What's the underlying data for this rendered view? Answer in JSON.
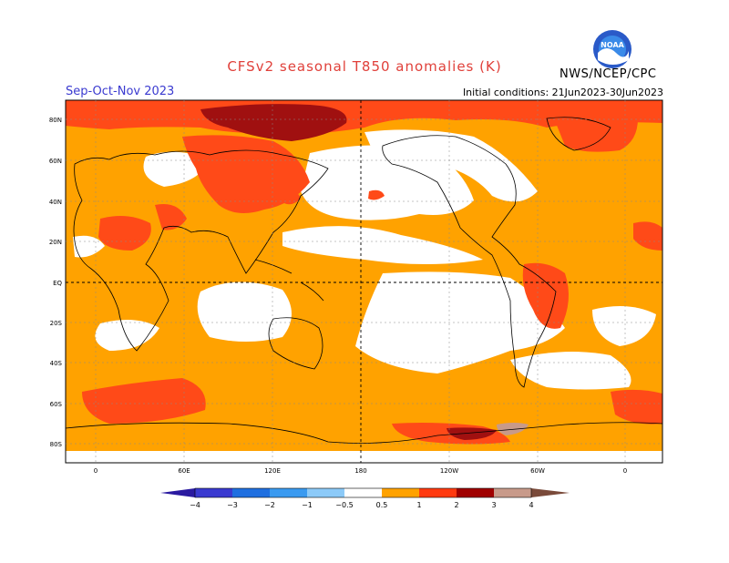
{
  "header": {
    "title": "CFSv2 seasonal T850 anomalies (K)",
    "season": "Sep-Oct-Nov 2023",
    "initial_conditions": "Initial conditions: 21Jun2023-30Jun2023",
    "organization": "NWS/NCEP/CPC",
    "logo_text": "NOAA"
  },
  "map": {
    "lat_labels": [
      "80N",
      "60N",
      "40N",
      "20N",
      "EQ",
      "20S",
      "40S",
      "60S",
      "80S"
    ],
    "lon_labels": [
      "0",
      "60E",
      "120E",
      "180",
      "120W",
      "60W",
      "0"
    ]
  },
  "legend": {
    "ticks": [
      "−4",
      "−3",
      "−2",
      "−1",
      "−0.5",
      "0.5",
      "1",
      "2",
      "3",
      "4"
    ],
    "colors": [
      "#2a1aa0",
      "#3a3ad0",
      "#1f6fe0",
      "#3a9af0",
      "#8ccaf8",
      "#ffffff",
      "#ffa200",
      "#ff3a10",
      "#a00000",
      "#c89a8a",
      "#7a4a3a"
    ]
  },
  "colors": {
    "anomaly_05_1": "#ffa200",
    "anomaly_1_2": "#ff4a18",
    "anomaly_2_3": "#a01010",
    "title_color": "#e0403a",
    "season_color": "#3a3ad0"
  }
}
